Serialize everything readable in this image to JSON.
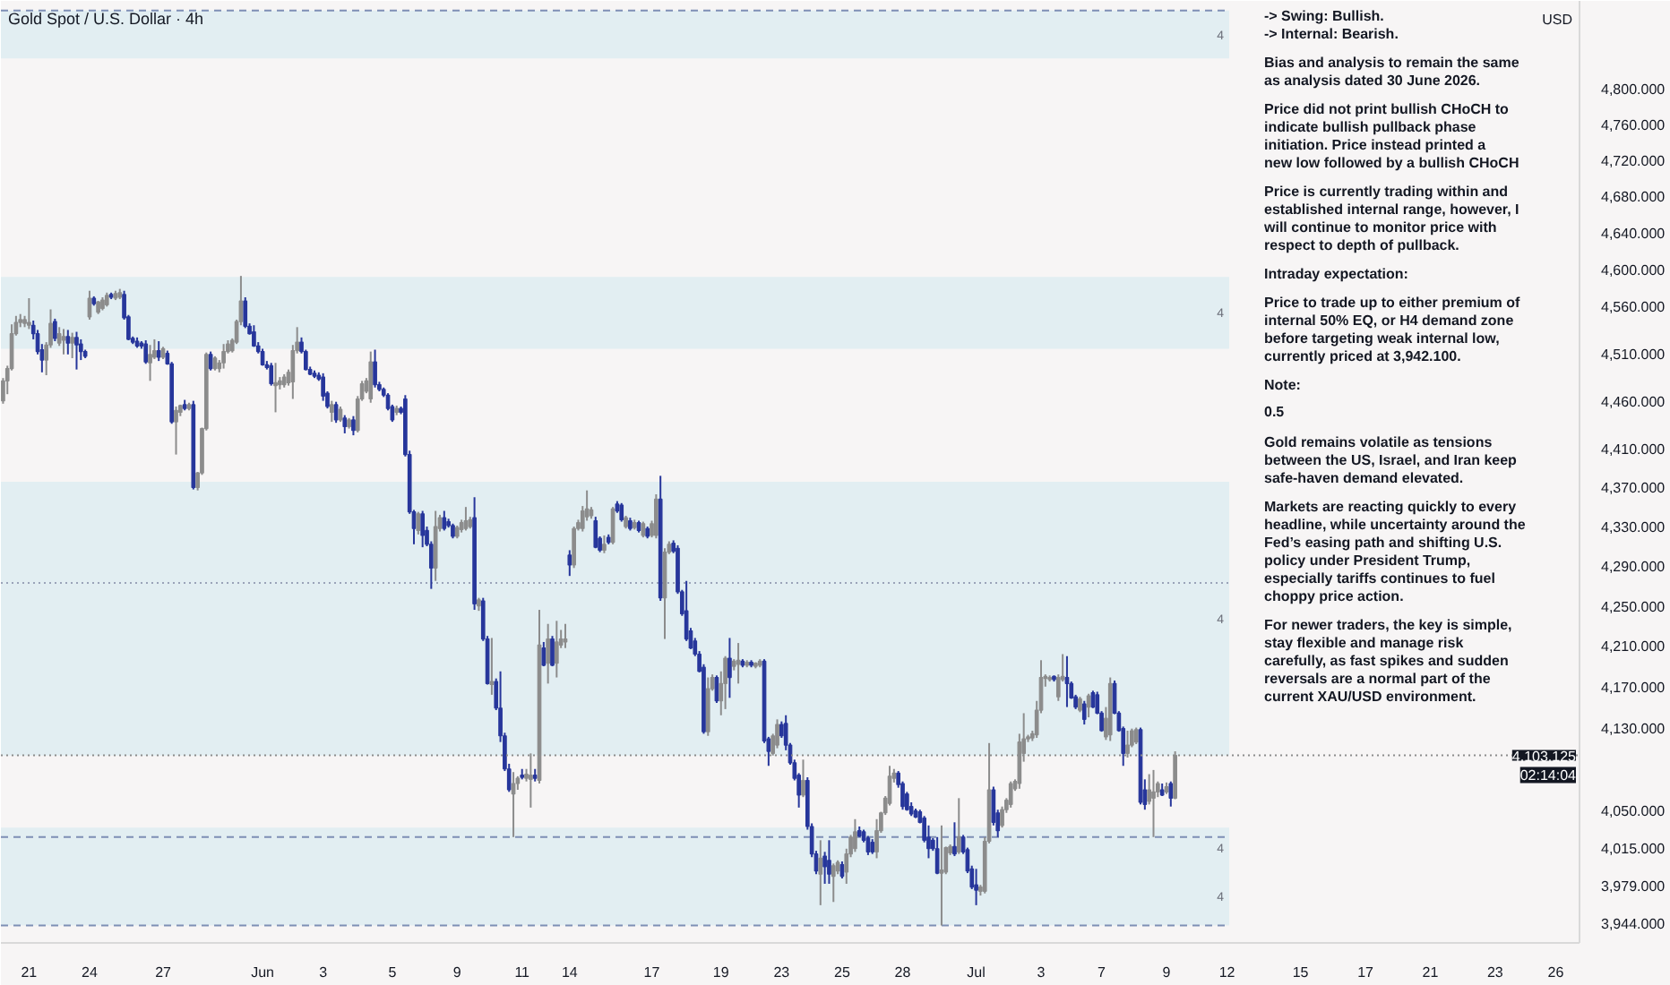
{
  "chart_data": {
    "type": "candlestick",
    "title": "Gold Spot / U.S. Dollar · 4h",
    "ylabel": "USD",
    "log": "y",
    "ylim": [
      3926,
      4900
    ],
    "yticks": [
      {
        "value": 4800,
        "label": "4,800.000"
      },
      {
        "value": 4760,
        "label": "4,760.000"
      },
      {
        "value": 4720,
        "label": "4,720.000"
      },
      {
        "value": 4680,
        "label": "4,680.000"
      },
      {
        "value": 4640,
        "label": "4,640.000"
      },
      {
        "value": 4600,
        "label": "4,600.000"
      },
      {
        "value": 4560,
        "label": "4,560.000"
      },
      {
        "value": 4510,
        "label": "4,510.000"
      },
      {
        "value": 4460,
        "label": "4,460.000"
      },
      {
        "value": 4410,
        "label": "4,410.000"
      },
      {
        "value": 4370,
        "label": "4,370.000"
      },
      {
        "value": 4330,
        "label": "4,330.000"
      },
      {
        "value": 4290,
        "label": "4,290.000"
      },
      {
        "value": 4250,
        "label": "4,250.000"
      },
      {
        "value": 4210,
        "label": "4,210.000"
      },
      {
        "value": 4170,
        "label": "4,170.000"
      },
      {
        "value": 4130,
        "label": "4,130.000"
      },
      {
        "value": 4050,
        "label": "4,050.000"
      },
      {
        "value": 4015,
        "label": "4,015.000"
      },
      {
        "value": 3979,
        "label": "3,979.000"
      },
      {
        "value": 3944,
        "label": "3,944.000"
      }
    ],
    "categories": [
      null,
      null,
      null,
      null,
      null,
      null,
      "21",
      null,
      null,
      null,
      null,
      null,
      null,
      null,
      null,
      null,
      null,
      null,
      null,
      null,
      "24",
      null,
      null,
      null,
      null,
      null,
      null,
      null,
      null,
      null,
      null,
      null,
      null,
      null,
      null,
      null,
      null,
      "27",
      null,
      null,
      null,
      null,
      null,
      null,
      null,
      null,
      null,
      null,
      null,
      null,
      null,
      null,
      null,
      null,
      null,
      null,
      null,
      null,
      null,
      null,
      "Jun",
      null,
      null,
      null,
      null,
      null,
      null,
      null,
      null,
      null,
      null,
      null,
      null,
      null,
      "3",
      null,
      null,
      null,
      null,
      null,
      null,
      null,
      null,
      null,
      null,
      null,
      null,
      null,
      null,
      null,
      "5",
      null,
      null,
      null,
      null,
      null,
      null,
      null,
      null,
      null,
      null,
      null,
      null,
      null,
      null,
      "9",
      null,
      null,
      null,
      null,
      null,
      null,
      null,
      null,
      null,
      null,
      null,
      null,
      null,
      null,
      "11",
      null,
      null,
      null,
      null,
      null,
      null,
      null,
      null,
      null,
      null,
      "14",
      null,
      null,
      null,
      null,
      null,
      null,
      null,
      null,
      null,
      null,
      null,
      null,
      null,
      null,
      null,
      null,
      null,
      null,
      "17",
      null,
      null,
      null,
      null,
      null,
      null,
      null,
      null,
      null,
      null,
      null,
      null,
      null,
      null,
      null,
      "19",
      null,
      null,
      null,
      null,
      null,
      null,
      null,
      null,
      null,
      null,
      null,
      null,
      null,
      "23",
      null,
      null,
      null,
      null,
      null,
      null,
      null,
      null,
      null,
      null,
      null,
      null,
      null,
      "25",
      null,
      null,
      null,
      null,
      null,
      null,
      null,
      null,
      null,
      null,
      null,
      null,
      null,
      "28",
      null,
      null,
      null,
      null,
      null,
      null,
      null,
      null,
      null,
      null,
      null,
      null,
      null,
      null,
      null,
      null,
      "Jul",
      null,
      null,
      null,
      null,
      null,
      null,
      null,
      null,
      null,
      null,
      null,
      null,
      null,
      null,
      "3",
      null,
      null,
      null,
      null,
      null,
      null,
      null,
      null,
      null,
      null,
      null,
      null,
      null,
      "7",
      null,
      null,
      null,
      null,
      null,
      null,
      null,
      null,
      null,
      null,
      null,
      null,
      null,
      null,
      "9",
      null,
      null,
      null,
      null,
      null,
      null,
      null,
      null,
      null,
      null,
      null,
      null,
      null,
      "12",
      null,
      null,
      null,
      null,
      null,
      null,
      null,
      null,
      null,
      null,
      null,
      null,
      null,
      null,
      null,
      null,
      "15",
      null,
      null,
      null,
      null,
      null,
      null,
      null,
      null,
      null,
      null,
      null,
      null,
      null,
      null,
      "17",
      null,
      null,
      null,
      null,
      null,
      null,
      null,
      null,
      null,
      null,
      null,
      null,
      null,
      null,
      "21",
      null,
      null,
      null,
      null,
      null,
      null,
      null,
      null,
      null,
      null,
      null,
      null,
      null,
      null,
      "23",
      null,
      null,
      null,
      null,
      null,
      null,
      null,
      null,
      null,
      null,
      null,
      null,
      null,
      "26",
      null,
      null,
      null,
      null,
      null
    ],
    "ohlc": [
      [
        4460,
        4484,
        4457,
        4481
      ],
      [
        4481,
        4497,
        4467,
        4494
      ],
      [
        4494,
        4541,
        4492,
        4531
      ],
      [
        4531,
        4550,
        4529,
        4543
      ],
      [
        4543,
        4552,
        4538,
        4546
      ],
      [
        4542,
        4550,
        4538,
        4546
      ],
      [
        4540,
        4569,
        4536,
        4543
      ],
      [
        4540,
        4545,
        4525,
        4531
      ],
      [
        4531,
        4535,
        4509,
        4512
      ],
      [
        4514,
        4520,
        4490,
        4503
      ],
      [
        4503,
        4522,
        4487,
        4519
      ],
      [
        4519,
        4557,
        4516,
        4542
      ],
      [
        4544,
        4547,
        4523,
        4526
      ],
      [
        4521,
        4538,
        4518,
        4531
      ],
      [
        4524,
        4536,
        4509,
        4528
      ],
      [
        4528,
        4535,
        4509,
        4521
      ],
      [
        4521,
        4532,
        4505,
        4527
      ],
      [
        4527,
        4533,
        4493,
        4519
      ],
      [
        4520,
        4525,
        4503,
        4512
      ],
      [
        4512,
        4514,
        4505,
        4507
      ],
      [
        4549,
        4577,
        4546,
        4569
      ],
      [
        4569,
        4571,
        4561,
        4563
      ],
      [
        4554,
        4566,
        4552,
        4565
      ],
      [
        4558,
        4570,
        4556,
        4567
      ],
      [
        4562,
        4575,
        4560,
        4572
      ],
      [
        4573,
        4575,
        4568,
        4570
      ],
      [
        4569,
        4577,
        4567,
        4574
      ],
      [
        4570,
        4579,
        4568,
        4575
      ],
      [
        4573,
        4577,
        4546,
        4548
      ],
      [
        4549,
        4551,
        4524,
        4525
      ],
      [
        4526,
        4528,
        4520,
        4522
      ],
      [
        4523,
        4527,
        4516,
        4518
      ],
      [
        4521,
        4523,
        4515,
        4518
      ],
      [
        4520,
        4524,
        4499,
        4501
      ],
      [
        4500,
        4519,
        4481,
        4509
      ],
      [
        4506,
        4525,
        4504,
        4513
      ],
      [
        4513,
        4523,
        4502,
        4506
      ],
      [
        4506,
        4517,
        4504,
        4515
      ],
      [
        4510,
        4513,
        4498,
        4499
      ],
      [
        4499,
        4501,
        4436,
        4438
      ],
      [
        4438,
        4454,
        4404,
        4450
      ],
      [
        4448,
        4456,
        4444,
        4455
      ],
      [
        4456,
        4461,
        4450,
        4452
      ],
      [
        4452,
        4458,
        4450,
        4456
      ],
      [
        4456,
        4460,
        4368,
        4370
      ],
      [
        4370,
        4386,
        4367,
        4385
      ],
      [
        4385,
        4432,
        4383,
        4431
      ],
      [
        4431,
        4511,
        4429,
        4509
      ],
      [
        4509,
        4512,
        4492,
        4494
      ],
      [
        4494,
        4507,
        4492,
        4505
      ],
      [
        4494,
        4503,
        4490,
        4500
      ],
      [
        4500,
        4520,
        4494,
        4512
      ],
      [
        4512,
        4524,
        4510,
        4520
      ],
      [
        4513,
        4526,
        4511,
        4524
      ],
      [
        4522,
        4546,
        4520,
        4544
      ],
      [
        4544,
        4593,
        4540,
        4566
      ],
      [
        4566,
        4570,
        4537,
        4539
      ],
      [
        4539,
        4542,
        4530,
        4531
      ],
      [
        4533,
        4540,
        4517,
        4518
      ],
      [
        4518,
        4522,
        4510,
        4512
      ],
      [
        4512,
        4515,
        4497,
        4498
      ],
      [
        4498,
        4502,
        4493,
        4495
      ],
      [
        4497,
        4500,
        4476,
        4478
      ],
      [
        4476,
        4500,
        4448,
        4479
      ],
      [
        4477,
        4485,
        4472,
        4481
      ],
      [
        4477,
        4488,
        4474,
        4485
      ],
      [
        4479,
        4493,
        4476,
        4490
      ],
      [
        4480,
        4519,
        4462,
        4513
      ],
      [
        4513,
        4538,
        4510,
        4522
      ],
      [
        4522,
        4527,
        4510,
        4512
      ],
      [
        4512,
        4514,
        4492,
        4493
      ],
      [
        4493,
        4496,
        4487,
        4488
      ],
      [
        4489,
        4492,
        4484,
        4486
      ],
      [
        4487,
        4490,
        4481,
        4483
      ],
      [
        4485,
        4489,
        4460,
        4465
      ],
      [
        4468,
        4470,
        4452,
        4454
      ],
      [
        4448,
        4460,
        4438,
        4456
      ],
      [
        4456,
        4459,
        4437,
        4440
      ],
      [
        4440,
        4454,
        4438,
        4451
      ],
      [
        4442,
        4445,
        4426,
        4433
      ],
      [
        4433,
        4442,
        4431,
        4440
      ],
      [
        4440,
        4444,
        4424,
        4429
      ],
      [
        4429,
        4465,
        4427,
        4462
      ],
      [
        4462,
        4481,
        4460,
        4478
      ],
      [
        4470,
        4484,
        4468,
        4481
      ],
      [
        4462,
        4512,
        4458,
        4501
      ],
      [
        4501,
        4514,
        4474,
        4477
      ],
      [
        4477,
        4480,
        4470,
        4472
      ],
      [
        4472,
        4474,
        4464,
        4466
      ],
      [
        4466,
        4468,
        4450,
        4452
      ],
      [
        4454,
        4456,
        4438,
        4440
      ],
      [
        4448,
        4455,
        4445,
        4452
      ],
      [
        4452,
        4454,
        4446,
        4448
      ],
      [
        4462,
        4466,
        4402,
        4404
      ],
      [
        4404,
        4408,
        4343,
        4345
      ],
      [
        4345,
        4347,
        4312,
        4328
      ],
      [
        4326,
        4345,
        4322,
        4343
      ],
      [
        4343,
        4346,
        4309,
        4321
      ],
      [
        4326,
        4330,
        4310,
        4312
      ],
      [
        4312,
        4315,
        4267,
        4288
      ],
      [
        4288,
        4346,
        4275,
        4330
      ],
      [
        4328,
        4342,
        4325,
        4339
      ],
      [
        4339,
        4346,
        4326,
        4328
      ],
      [
        4335,
        4338,
        4329,
        4331
      ],
      [
        4331,
        4333,
        4318,
        4320
      ],
      [
        4320,
        4331,
        4318,
        4329
      ],
      [
        4327,
        4337,
        4324,
        4334
      ],
      [
        4328,
        4350,
        4326,
        4336
      ],
      [
        4330,
        4340,
        4328,
        4337
      ],
      [
        4339,
        4360,
        4246,
        4252
      ],
      [
        4250,
        4258,
        4245,
        4256
      ],
      [
        4255,
        4258,
        4215,
        4217
      ],
      [
        4217,
        4220,
        4172,
        4173
      ],
      [
        4172,
        4218,
        4162,
        4175
      ],
      [
        4175,
        4178,
        4147,
        4149
      ],
      [
        4149,
        4185,
        4116,
        4122
      ],
      [
        4122,
        4125,
        4088,
        4090
      ],
      [
        4090,
        4095,
        4068,
        4070
      ],
      [
        4066,
        4087,
        4025,
        4076
      ],
      [
        4076,
        4083,
        4070,
        4081
      ],
      [
        4084,
        4090,
        4080,
        4082
      ],
      [
        4081,
        4090,
        4078,
        4085
      ],
      [
        4080,
        4105,
        4053,
        4084
      ],
      [
        4084,
        4090,
        4078,
        4081
      ],
      [
        4079,
        4246,
        4076,
        4211
      ],
      [
        4208,
        4214,
        4190,
        4191
      ],
      [
        4193,
        4232,
        4173,
        4217
      ],
      [
        4217,
        4220,
        4190,
        4191
      ],
      [
        4193,
        4235,
        4179,
        4214
      ],
      [
        4211,
        4226,
        4208,
        4217
      ],
      [
        4214,
        4232,
        4208,
        4217
      ],
      [
        4301,
        4306,
        4280,
        4291
      ],
      [
        4291,
        4330,
        4288,
        4328
      ],
      [
        4328,
        4337,
        4326,
        4334
      ],
      [
        4328,
        4351,
        4325,
        4346
      ],
      [
        4340,
        4367,
        4336,
        4348
      ],
      [
        4341,
        4350,
        4338,
        4347
      ],
      [
        4336,
        4340,
        4308,
        4309
      ],
      [
        4318,
        4320,
        4304,
        4306
      ],
      [
        4306,
        4321,
        4303,
        4312
      ],
      [
        4319,
        4322,
        4312,
        4314
      ],
      [
        4314,
        4350,
        4312,
        4348
      ],
      [
        4353,
        4356,
        4344,
        4346
      ],
      [
        4352,
        4354,
        4335,
        4337
      ],
      [
        4330,
        4341,
        4328,
        4339
      ],
      [
        4336,
        4339,
        4326,
        4328
      ],
      [
        4329,
        4337,
        4327,
        4334
      ],
      [
        4334,
        4336,
        4324,
        4326
      ],
      [
        4321,
        4335,
        4319,
        4333
      ],
      [
        4328,
        4330,
        4318,
        4320
      ],
      [
        4321,
        4336,
        4319,
        4333
      ],
      [
        4321,
        4363,
        4318,
        4358
      ],
      [
        4358,
        4382,
        4255,
        4258
      ],
      [
        4258,
        4308,
        4217,
        4304
      ],
      [
        4304,
        4315,
        4302,
        4312
      ],
      [
        4313,
        4316,
        4303,
        4305
      ],
      [
        4308,
        4311,
        4262,
        4264
      ],
      [
        4264,
        4266,
        4240,
        4242
      ],
      [
        4245,
        4275,
        4215,
        4217
      ],
      [
        4225,
        4228,
        4207,
        4208
      ],
      [
        4215,
        4218,
        4200,
        4202
      ],
      [
        4202,
        4205,
        4184,
        4185
      ],
      [
        4189,
        4192,
        4124,
        4126
      ],
      [
        4126,
        4179,
        4122,
        4168
      ],
      [
        4168,
        4182,
        4166,
        4179
      ],
      [
        4179,
        4181,
        4154,
        4156
      ],
      [
        4156,
        4185,
        4142,
        4173
      ],
      [
        4173,
        4200,
        4148,
        4198
      ],
      [
        4198,
        4218,
        4159,
        4179
      ],
      [
        4190,
        4197,
        4186,
        4195
      ],
      [
        4192,
        4213,
        4173,
        4196
      ],
      [
        4195,
        4197,
        4189,
        4191
      ],
      [
        4191,
        4196,
        4189,
        4194
      ],
      [
        4194,
        4196,
        4189,
        4191
      ],
      [
        4190,
        4194,
        4188,
        4193
      ],
      [
        4191,
        4197,
        4189,
        4195
      ],
      [
        4195,
        4197,
        4115,
        4117
      ],
      [
        4119,
        4121,
        4093,
        4107
      ],
      [
        4105,
        4124,
        4103,
        4122
      ],
      [
        4113,
        4138,
        4110,
        4133
      ],
      [
        4133,
        4136,
        4120,
        4122
      ],
      [
        4134,
        4142,
        4108,
        4113
      ],
      [
        4113,
        4115,
        4094,
        4096
      ],
      [
        4096,
        4099,
        4079,
        4081
      ],
      [
        4084,
        4086,
        4053,
        4065
      ],
      [
        4065,
        4099,
        4063,
        4079
      ],
      [
        4079,
        4082,
        4032,
        4035
      ],
      [
        4035,
        4038,
        4006,
        4009
      ],
      [
        4009,
        4012,
        3990,
        3993
      ],
      [
        3990,
        4022,
        3961,
        4005
      ],
      [
        4007,
        4011,
        3981,
        3997
      ],
      [
        4003,
        4022,
        3981,
        3990
      ],
      [
        3988,
        4000,
        3964,
        3998
      ],
      [
        3993,
        4003,
        3990,
        4001
      ],
      [
        3999,
        4002,
        3986,
        3988
      ],
      [
        3992,
        4014,
        3981,
        4009
      ],
      [
        4009,
        4027,
        4006,
        4025
      ],
      [
        4014,
        4042,
        4011,
        4030
      ],
      [
        4031,
        4035,
        4025,
        4026
      ],
      [
        4030,
        4032,
        4020,
        4022
      ],
      [
        4024,
        4026,
        4008,
        4011
      ],
      [
        4020,
        4023,
        4009,
        4011
      ],
      [
        4011,
        4042,
        4005,
        4031
      ],
      [
        4031,
        4049,
        4029,
        4048
      ],
      [
        4048,
        4064,
        4046,
        4062
      ],
      [
        4057,
        4093,
        4055,
        4083
      ],
      [
        4081,
        4090,
        4077,
        4086
      ],
      [
        4086,
        4088,
        4072,
        4075
      ],
      [
        4076,
        4078,
        4051,
        4054
      ],
      [
        4066,
        4068,
        4050,
        4051
      ],
      [
        4054,
        4058,
        4045,
        4047
      ],
      [
        4050,
        4052,
        4043,
        4044
      ],
      [
        4049,
        4051,
        4038,
        4039
      ],
      [
        4043,
        4045,
        4020,
        4022
      ],
      [
        4025,
        4036,
        4005,
        4014
      ],
      [
        4022,
        4024,
        4012,
        4014
      ],
      [
        4014,
        4025,
        3990,
        3991
      ],
      [
        3991,
        4036,
        3942.1,
        3994
      ],
      [
        3992,
        4016,
        3990,
        4015
      ],
      [
        4010,
        4018,
        4008,
        4016
      ],
      [
        4016,
        4039,
        4007,
        4009
      ],
      [
        4011,
        4062,
        4009,
        4025
      ],
      [
        4025,
        4027,
        4009,
        4011
      ],
      [
        4013,
        4015,
        3991,
        3993
      ],
      [
        3995,
        3998,
        3976,
        3978
      ],
      [
        3980,
        3995,
        3961,
        3975
      ],
      [
        3974,
        3980,
        3970,
        3978
      ],
      [
        3974,
        4025,
        3972,
        4021
      ],
      [
        4021,
        4115,
        4019,
        4070
      ],
      [
        4070,
        4073,
        4036,
        4039
      ],
      [
        4048,
        4051,
        4025,
        4031
      ],
      [
        4036,
        4054,
        4034,
        4051
      ],
      [
        4051,
        4062,
        4048,
        4060
      ],
      [
        4056,
        4078,
        4053,
        4076
      ],
      [
        4071,
        4080,
        4069,
        4078
      ],
      [
        4076,
        4124,
        4071,
        4116
      ],
      [
        4105,
        4144,
        4097,
        4119
      ],
      [
        4119,
        4123,
        4116,
        4121
      ],
      [
        4120,
        4127,
        4117,
        4124
      ],
      [
        4123,
        4156,
        4120,
        4147
      ],
      [
        4147,
        4196,
        4144,
        4179
      ],
      [
        4178,
        4182,
        4170,
        4180
      ],
      [
        4177,
        4181,
        4175,
        4179
      ],
      [
        4180,
        4181,
        4175,
        4177
      ],
      [
        4160,
        4182,
        4156,
        4179
      ],
      [
        4177,
        4202,
        4175,
        4180
      ],
      [
        4179,
        4200,
        4150,
        4173
      ],
      [
        4173,
        4175,
        4158,
        4159
      ],
      [
        4160,
        4162,
        4148,
        4150
      ],
      [
        4147,
        4160,
        4145,
        4158
      ],
      [
        4153,
        4156,
        4133,
        4138
      ],
      [
        4150,
        4163,
        4140,
        4161
      ],
      [
        4164,
        4166,
        4149,
        4150
      ],
      [
        4162,
        4165,
        4143,
        4144
      ],
      [
        4144,
        4146,
        4126,
        4127
      ],
      [
        4121,
        4150,
        4118,
        4139
      ],
      [
        4123,
        4179,
        4117,
        4173
      ],
      [
        4173,
        4176,
        4143,
        4144
      ],
      [
        4144,
        4146,
        4126,
        4127
      ],
      [
        4129,
        4131,
        4093,
        4105
      ],
      [
        4105,
        4127,
        4101,
        4113
      ],
      [
        4113,
        4129,
        4111,
        4127
      ],
      [
        4116,
        4130,
        4114,
        4128
      ],
      [
        4128,
        4130,
        4056,
        4058
      ],
      [
        4070,
        4080,
        4051,
        4056
      ],
      [
        4059,
        4085,
        4056,
        4070
      ],
      [
        4062,
        4089,
        4025,
        4068
      ],
      [
        4068,
        4078,
        4063,
        4076
      ],
      [
        4070,
        4076,
        4064,
        4065
      ],
      [
        4068,
        4077,
        4066,
        4073
      ],
      [
        4076,
        4078,
        4054,
        4062
      ],
      [
        4062,
        4107,
        4061,
        4103.125
      ],
      null,
      null,
      null,
      null,
      null,
      null,
      null,
      null,
      null,
      null,
      null,
      null,
      null,
      null,
      null,
      null,
      null,
      null,
      null,
      null,
      null,
      null,
      null,
      null,
      null,
      null,
      null,
      null,
      null,
      null,
      null,
      null,
      null,
      null,
      null,
      null,
      null,
      null,
      null,
      null,
      null,
      null,
      null,
      null,
      null,
      null,
      null,
      null,
      null,
      null,
      null,
      null,
      null,
      null,
      null,
      null,
      null,
      null,
      null,
      null,
      null,
      null,
      null,
      null,
      null,
      null,
      null,
      null,
      null,
      null,
      null,
      null,
      null,
      null,
      null,
      null,
      null,
      null,
      null,
      null,
      null,
      null,
      null,
      null,
      null,
      null,
      null,
      null,
      null,
      null,
      null,
      null,
      null
    ],
    "colors": [
      "#8c8c8c",
      "#8c8c8c",
      "#8c8c8c",
      "#8c8c8c",
      "#8c8c8c",
      "#8c8c8c",
      "#8c8c8c",
      "#27369b",
      "#27369b",
      "#27369b",
      "#8c8c8c",
      "#8c8c8c",
      "#27369b",
      "#8c8c8c",
      "#8c8c8c",
      "#27369b",
      "#8c8c8c",
      "#27369b",
      "#27369b",
      "#27369b",
      "#8c8c8c",
      "#27369b",
      "#8c8c8c",
      "#8c8c8c",
      "#8c8c8c",
      "#27369b",
      "#8c8c8c",
      "#8c8c8c",
      "#27369b",
      "#27369b",
      "#27369b",
      "#27369b",
      "#27369b",
      "#27369b",
      "#8c8c8c",
      "#8c8c8c",
      "#27369b",
      "#8c8c8c",
      "#27369b",
      "#27369b",
      "#8c8c8c",
      "#8c8c8c",
      "#27369b",
      "#8c8c8c",
      "#27369b",
      "#8c8c8c",
      "#8c8c8c",
      "#8c8c8c",
      "#27369b",
      "#8c8c8c",
      "#8c8c8c",
      "#8c8c8c",
      "#8c8c8c",
      "#8c8c8c",
      "#8c8c8c",
      "#8c8c8c",
      "#27369b",
      "#27369b",
      "#27369b",
      "#27369b",
      "#27369b",
      "#27369b",
      "#27369b",
      "#8c8c8c",
      "#8c8c8c",
      "#8c8c8c",
      "#8c8c8c",
      "#8c8c8c",
      "#8c8c8c",
      "#27369b",
      "#27369b",
      "#27369b",
      "#27369b",
      "#27369b",
      "#27369b",
      "#27369b",
      "#8c8c8c",
      "#27369b",
      "#8c8c8c",
      "#27369b",
      "#8c8c8c",
      "#27369b",
      "#8c8c8c",
      "#8c8c8c",
      "#8c8c8c",
      "#8c8c8c",
      "#27369b",
      "#27369b",
      "#27369b",
      "#27369b",
      "#27369b",
      "#8c8c8c",
      "#27369b",
      "#27369b",
      "#27369b",
      "#27369b",
      "#8c8c8c",
      "#27369b",
      "#27369b",
      "#27369b",
      "#8c8c8c",
      "#8c8c8c",
      "#27369b",
      "#27369b",
      "#27369b",
      "#8c8c8c",
      "#8c8c8c",
      "#8c8c8c",
      "#8c8c8c",
      "#27369b",
      "#8c8c8c",
      "#27369b",
      "#27369b",
      "#8c8c8c",
      "#27369b",
      "#27369b",
      "#27369b",
      "#27369b",
      "#8c8c8c",
      "#8c8c8c",
      "#27369b",
      "#8c8c8c",
      "#8c8c8c",
      "#27369b",
      "#8c8c8c",
      "#27369b",
      "#8c8c8c",
      "#27369b",
      "#8c8c8c",
      "#8c8c8c",
      "#8c8c8c",
      "#27369b",
      "#8c8c8c",
      "#8c8c8c",
      "#8c8c8c",
      "#8c8c8c",
      "#8c8c8c",
      "#27369b",
      "#27369b",
      "#8c8c8c",
      "#27369b",
      "#8c8c8c",
      "#27369b",
      "#27369b",
      "#8c8c8c",
      "#27369b",
      "#8c8c8c",
      "#27369b",
      "#8c8c8c",
      "#27369b",
      "#8c8c8c",
      "#8c8c8c",
      "#27369b",
      "#8c8c8c",
      "#8c8c8c",
      "#27369b",
      "#27369b",
      "#27369b",
      "#27369b",
      "#27369b",
      "#27369b",
      "#27369b",
      "#27369b",
      "#8c8c8c",
      "#8c8c8c",
      "#27369b",
      "#8c8c8c",
      "#8c8c8c",
      "#27369b",
      "#8c8c8c",
      "#8c8c8c",
      "#27369b",
      "#8c8c8c",
      "#27369b",
      "#8c8c8c",
      "#8c8c8c",
      "#27369b",
      "#27369b",
      "#8c8c8c",
      "#8c8c8c",
      "#27369b",
      "#27369b",
      "#27369b",
      "#27369b",
      "#27369b",
      "#8c8c8c",
      "#27369b",
      "#27369b",
      "#27369b",
      "#8c8c8c",
      "#27369b",
      "#27369b",
      "#8c8c8c",
      "#8c8c8c",
      "#27369b",
      "#8c8c8c",
      "#8c8c8c",
      "#8c8c8c",
      "#27369b",
      "#27369b",
      "#27369b",
      "#27369b",
      "#8c8c8c",
      "#8c8c8c",
      "#8c8c8c",
      "#8c8c8c",
      "#8c8c8c",
      "#27369b",
      "#27369b",
      "#27369b",
      "#27369b",
      "#27369b",
      "#27369b",
      "#27369b",
      "#27369b",
      "#27369b",
      "#27369b",
      "#8c8c8c",
      "#8c8c8c",
      "#8c8c8c",
      "#27369b",
      "#8c8c8c",
      "#27369b",
      "#27369b",
      "#27369b",
      "#27369b",
      "#8c8c8c",
      "#8c8c8c",
      "#8c8c8c",
      "#27369b",
      "#27369b",
      "#8c8c8c",
      "#8c8c8c",
      "#8c8c8c",
      "#8c8c8c",
      "#8c8c8c",
      "#8c8c8c",
      "#8c8c8c",
      "#8c8c8c",
      "#8c8c8c",
      "#8c8c8c",
      "#8c8c8c",
      "#8c8c8c",
      "#27369b",
      "#8c8c8c",
      "#8c8c8c",
      "#27369b",
      "#27369b",
      "#27369b",
      "#8c8c8c",
      "#27369b",
      "#8c8c8c",
      "#27369b",
      "#27369b",
      "#27369b",
      "#8c8c8c",
      "#8c8c8c",
      "#27369b",
      "#27369b",
      "#27369b",
      "#8c8c8c",
      "#8c8c8c",
      "#8c8c8c",
      "#27369b",
      "#27369b",
      "#8c8c8c",
      "#8c8c8c",
      "#8c8c8c",
      "#27369b",
      "#8c8c8c",
      "#27369b",
      "#8c8c8c",
      null,
      null,
      null,
      null,
      null,
      null,
      null,
      null,
      null,
      null,
      null,
      null,
      null,
      null,
      null,
      null,
      null,
      null,
      null,
      null,
      null,
      null,
      null,
      null,
      null,
      null,
      null,
      null,
      null,
      null,
      null,
      null,
      null,
      null,
      null,
      null,
      null,
      null,
      null,
      null,
      null,
      null,
      null,
      null,
      null,
      null,
      null,
      null,
      null,
      null,
      null,
      null,
      null,
      null,
      null,
      null,
      null,
      null,
      null,
      null,
      null,
      null,
      null,
      null,
      null,
      null,
      null,
      null,
      null,
      null,
      null,
      null,
      null,
      null,
      null,
      null,
      null,
      null,
      null,
      null,
      null,
      null,
      null,
      null,
      null,
      null,
      null,
      null,
      null,
      null,
      null,
      null,
      null
    ],
    "bands": [
      {
        "axis": "y",
        "from": 4834,
        "to": 4889,
        "label": "4",
        "color": "#e2eef2"
      },
      {
        "axis": "y",
        "from": 4515,
        "to": 4592,
        "label": "4",
        "color": "#e2eef2"
      },
      {
        "axis": "y",
        "from": 4103,
        "to": 4376,
        "label": "4",
        "color": "#e2eef2"
      },
      {
        "axis": "y",
        "from": 3996,
        "to": 4034,
        "label": "4",
        "color": "#e2eef2"
      },
      {
        "axis": "y",
        "from": 3942.1,
        "to": 3996,
        "label": "4",
        "color": "#e2eef2"
      }
    ],
    "ref_lines": [
      {
        "axis": "y",
        "value": 4103.125,
        "label": "4,103.125",
        "color": "#8c8c8c",
        "line_style": "dotted"
      },
      {
        "axis": "y",
        "value": 4889,
        "color": "#7e8fb5",
        "line_style": "dashed"
      },
      {
        "axis": "y",
        "value": 4273,
        "color": "#9aa3b8",
        "line_style": "dotted"
      },
      {
        "axis": "y",
        "value": 4025,
        "color": "#7e8fb5",
        "line_style": "dashed"
      },
      {
        "axis": "y",
        "value": 3942.1,
        "color": "#7e8fb5",
        "line_style": "dashed"
      }
    ],
    "annotations": [
      "-> Swing: Bullish.\n-> Internal: Bearish.",
      "Bias and analysis to remain the same as analysis dated 30 June 2026.",
      "Price did not print bullish CHoCH to indicate bullish pullback phase initiation. Price instead printed a new low followed by a bullish CHoCH",
      "Price is currently trading within and established internal range, however, I will continue to monitor price with respect to depth of pullback.",
      "Intraday expectation:",
      "Price to trade up to either premium of internal 50% EQ, or H4 demand zone before targeting weak internal low, currently priced at 3,942.100.",
      "Note:",
      "0.5",
      "Gold remains volatile as tensions between the US, Israel, and Iran keep safe-haven demand elevated.",
      "Markets are reacting quickly to every headline, while uncertainty around the Fed’s easing path and shifting U.S. policy under President Trump, especially tariffs continues to fuel choppy price action.",
      "For newer traders, the key is simple, stay flexible and manage risk carefully, as fast spikes and sudden reversals are a normal part of the current XAU/USD environment.",
      {
        "text": "02:14:04",
        "y": 4103.125
      }
    ]
  }
}
